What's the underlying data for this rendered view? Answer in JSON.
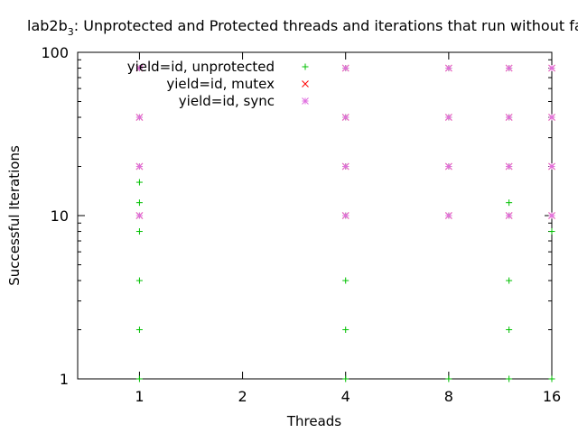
{
  "chart_data": {
    "type": "scatter",
    "title": {
      "prefix": "lab2b",
      "sub": "3",
      "rest": ": Unprotected and Protected threads and iterations that run without failure"
    },
    "xlabel": "Threads",
    "ylabel": "Successful Iterations",
    "x_scale": "log2",
    "y_scale": "log10",
    "xlim": [
      0.66,
      16
    ],
    "ylim": [
      1,
      100
    ],
    "x_ticks": [
      {
        "value": 1,
        "label": "1"
      },
      {
        "value": 2,
        "label": "2"
      },
      {
        "value": 4,
        "label": "4"
      },
      {
        "value": 8,
        "label": "8"
      },
      {
        "value": 16,
        "label": "16"
      }
    ],
    "y_ticks": [
      {
        "value": 1,
        "label": "1"
      },
      {
        "value": 10,
        "label": "10"
      },
      {
        "value": 100,
        "label": "100"
      }
    ],
    "legend_position": "top-left",
    "grid": false,
    "series": [
      {
        "name": "yield=id, unprotected",
        "marker": "+",
        "color": "#00c000",
        "points": [
          [
            1,
            1
          ],
          [
            1,
            2
          ],
          [
            1,
            4
          ],
          [
            1,
            8
          ],
          [
            1,
            10
          ],
          [
            1,
            12
          ],
          [
            1,
            16
          ],
          [
            1,
            20
          ],
          [
            1,
            40
          ],
          [
            1,
            80
          ],
          [
            4,
            1
          ],
          [
            4,
            2
          ],
          [
            4,
            4
          ],
          [
            4,
            10
          ],
          [
            4,
            20
          ],
          [
            4,
            40
          ],
          [
            4,
            80
          ],
          [
            8,
            1
          ],
          [
            8,
            10
          ],
          [
            8,
            20
          ],
          [
            8,
            40
          ],
          [
            8,
            80
          ],
          [
            12,
            1
          ],
          [
            12,
            2
          ],
          [
            12,
            4
          ],
          [
            12,
            10
          ],
          [
            12,
            12
          ],
          [
            12,
            20
          ],
          [
            12,
            40
          ],
          [
            12,
            80
          ],
          [
            16,
            1
          ],
          [
            16,
            8
          ],
          [
            16,
            10
          ],
          [
            16,
            20
          ],
          [
            16,
            40
          ],
          [
            16,
            80
          ]
        ]
      },
      {
        "name": "yield=id, mutex",
        "marker": "x",
        "color": "#ff0000",
        "points": [
          [
            1,
            10
          ],
          [
            1,
            20
          ],
          [
            1,
            40
          ],
          [
            1,
            80
          ],
          [
            4,
            10
          ],
          [
            4,
            20
          ],
          [
            4,
            40
          ],
          [
            4,
            80
          ],
          [
            8,
            10
          ],
          [
            8,
            20
          ],
          [
            8,
            40
          ],
          [
            8,
            80
          ],
          [
            12,
            10
          ],
          [
            12,
            20
          ],
          [
            12,
            40
          ],
          [
            12,
            80
          ],
          [
            16,
            10
          ],
          [
            16,
            20
          ],
          [
            16,
            40
          ],
          [
            16,
            80
          ]
        ]
      },
      {
        "name": "yield=id, sync",
        "marker": "*",
        "color": "#e070e0",
        "points": [
          [
            1,
            10
          ],
          [
            1,
            20
          ],
          [
            1,
            40
          ],
          [
            1,
            80
          ],
          [
            4,
            10
          ],
          [
            4,
            20
          ],
          [
            4,
            40
          ],
          [
            4,
            80
          ],
          [
            8,
            10
          ],
          [
            8,
            20
          ],
          [
            8,
            40
          ],
          [
            8,
            80
          ],
          [
            12,
            10
          ],
          [
            12,
            20
          ],
          [
            12,
            40
          ],
          [
            12,
            80
          ],
          [
            16,
            10
          ],
          [
            16,
            20
          ],
          [
            16,
            40
          ],
          [
            16,
            80
          ]
        ]
      }
    ]
  }
}
